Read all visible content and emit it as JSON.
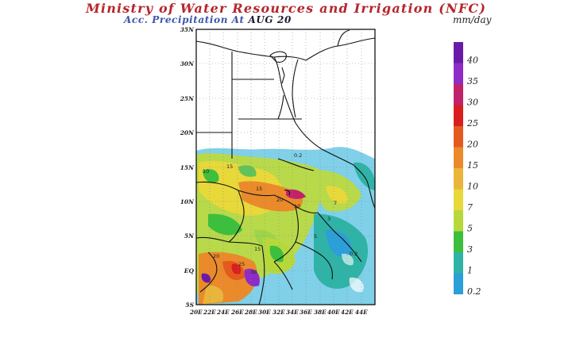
{
  "title": "Ministry of Water Resources and Irrigation (NFC)",
  "subtitle_prefix": "Acc. Precipitation  At",
  "subtitle_date": "AUG 20",
  "units": "mm/day",
  "lat_labels": [
    "35N",
    "30N",
    "25N",
    "20N",
    "15N",
    "10N",
    "5N",
    "EQ",
    "5S"
  ],
  "lon_labels": [
    "20E",
    "22E",
    "24E",
    "26E",
    "28E",
    "30E",
    "32E",
    "34E",
    "36E",
    "38E",
    "40E",
    "42E",
    "44E"
  ],
  "colorbar": {
    "labels": [
      "40",
      "35",
      "30",
      "25",
      "20",
      "15",
      "10",
      "7",
      "5",
      "3",
      "1",
      "0.2"
    ],
    "colors": [
      "#6a1aa8",
      "#8e2cc7",
      "#c0236a",
      "#d81e1e",
      "#e45a1e",
      "#eb8a2a",
      "#e9b53a",
      "#e8d83a",
      "#b7d83b",
      "#3cbf3c",
      "#2fb3a6",
      "#2a9fd8"
    ]
  },
  "contour_labels": [
    "10",
    "15",
    "20",
    "25",
    "30",
    "0.2",
    "5",
    "7",
    "3",
    "1"
  ]
}
